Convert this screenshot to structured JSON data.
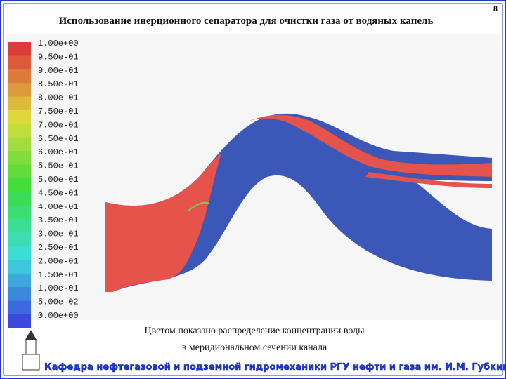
{
  "header": {
    "title": "Использование инерционного сепаратора для очистки газа от водяных капель",
    "page_number": "8"
  },
  "legend": {
    "labels": [
      "1.00e+00",
      "9.50e-01",
      "9.00e-01",
      "8.50e-01",
      "8.00e-01",
      "7.50e-01",
      "7.00e-01",
      "6.50e-01",
      "6.00e-01",
      "5.50e-01",
      "5.00e-01",
      "4.50e-01",
      "4.00e-01",
      "3.50e-01",
      "3.00e-01",
      "2.50e-01",
      "2.00e-01",
      "1.50e-01",
      "1.00e-01",
      "5.00e-02",
      "0.00e+00"
    ]
  },
  "caption": {
    "lines": [
      "Цветом показано распределение концентрации воды",
      "в меридиональном сечении канала"
    ]
  },
  "footer": {
    "text": "Кафедра нефтегазовой и подземной гидромеханики РГУ нефти и газа им. И.М. Губкина"
  }
}
